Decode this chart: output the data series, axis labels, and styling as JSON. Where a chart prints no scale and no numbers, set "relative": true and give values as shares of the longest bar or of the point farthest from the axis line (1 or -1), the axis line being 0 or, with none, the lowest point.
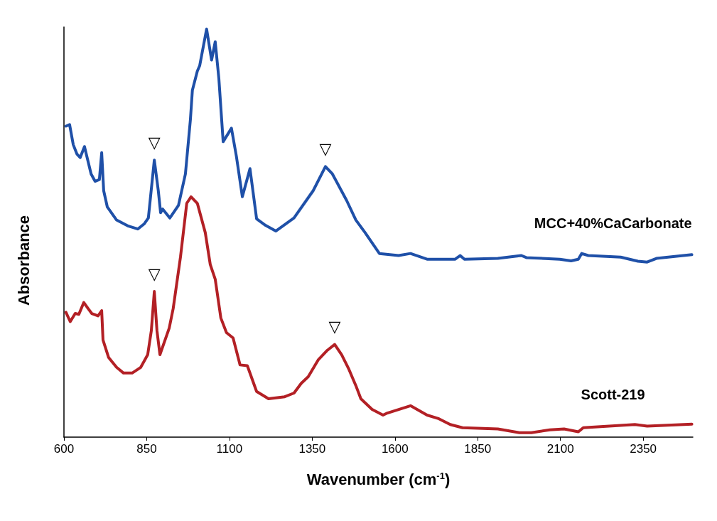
{
  "chart_data": {
    "type": "line",
    "relative": true,
    "xlabel": "Wavenumber (cm$^{-1}$)",
    "ylabel": "Absorbance",
    "xlim": [
      600,
      2500
    ],
    "xticks": [
      600,
      850,
      1100,
      1350,
      1600,
      1850,
      2100,
      2350
    ],
    "grid": false,
    "legend": false,
    "marker": "none",
    "line_style": "solid",
    "series": [
      {
        "name": "MCC+40%CaCarbonate",
        "color": "#1f50a8",
        "x": [
          606,
          617,
          628,
          639,
          649,
          662,
          682,
          694,
          707,
          714,
          720,
          731,
          759,
          795,
          823,
          843,
          855,
          873,
          885,
          892,
          898,
          920,
          946,
          967,
          982,
          988,
          1003,
          1010,
          1031,
          1046,
          1057,
          1068,
          1081,
          1106,
          1121,
          1139,
          1162,
          1182,
          1209,
          1240,
          1295,
          1353,
          1390,
          1411,
          1454,
          1482,
          1510,
          1525,
          1553,
          1611,
          1647,
          1697,
          1782,
          1797,
          1810,
          1911,
          1982,
          1997,
          2098,
          2132,
          2154,
          2164,
          2184,
          2282,
          2334,
          2362,
          2390,
          2497
        ],
        "values": [
          0.762,
          0.766,
          0.717,
          0.694,
          0.685,
          0.712,
          0.645,
          0.627,
          0.631,
          0.697,
          0.604,
          0.564,
          0.532,
          0.517,
          0.51,
          0.523,
          0.537,
          0.679,
          0.604,
          0.55,
          0.559,
          0.537,
          0.568,
          0.645,
          0.778,
          0.85,
          0.897,
          0.91,
          1,
          0.924,
          0.969,
          0.879,
          0.724,
          0.757,
          0.688,
          0.589,
          0.658,
          0.535,
          0.519,
          0.505,
          0.537,
          0.604,
          0.663,
          0.645,
          0.58,
          0.532,
          0.501,
          0.483,
          0.45,
          0.445,
          0.45,
          0.436,
          0.436,
          0.445,
          0.436,
          0.438,
          0.445,
          0.44,
          0.436,
          0.432,
          0.436,
          0.45,
          0.445,
          0.441,
          0.431,
          0.429,
          0.438,
          0.447
        ]
      },
      {
        "name": "Scott-219",
        "color": "#b32025",
        "x": [
          606,
          619,
          634,
          645,
          660,
          673,
          684,
          703,
          714,
          718,
          735,
          759,
          780,
          806,
          832,
          853,
          864,
          873,
          881,
          890,
          918,
          930,
          952,
          971,
          984,
          1003,
          1027,
          1042,
          1057,
          1074,
          1091,
          1111,
          1132,
          1154,
          1182,
          1218,
          1267,
          1295,
          1317,
          1338,
          1368,
          1396,
          1418,
          1439,
          1461,
          1482,
          1497,
          1531,
          1564,
          1574,
          1647,
          1697,
          1733,
          1767,
          1804,
          1911,
          1976,
          2012,
          2068,
          2111,
          2154,
          2169,
          2325,
          2362,
          2497
        ],
        "values": [
          0.306,
          0.283,
          0.303,
          0.301,
          0.33,
          0.315,
          0.303,
          0.297,
          0.31,
          0.238,
          0.195,
          0.171,
          0.157,
          0.157,
          0.171,
          0.202,
          0.261,
          0.357,
          0.261,
          0.202,
          0.267,
          0.315,
          0.441,
          0.573,
          0.589,
          0.573,
          0.501,
          0.423,
          0.387,
          0.292,
          0.256,
          0.243,
          0.177,
          0.175,
          0.112,
          0.094,
          0.099,
          0.108,
          0.132,
          0.148,
          0.189,
          0.213,
          0.227,
          0.202,
          0.166,
          0.126,
          0.094,
          0.068,
          0.054,
          0.058,
          0.077,
          0.054,
          0.045,
          0.031,
          0.023,
          0.02,
          0.011,
          0.011,
          0.018,
          0.02,
          0.013,
          0.023,
          0.031,
          0.027,
          0.032
        ]
      }
    ],
    "annotations": [
      {
        "text": "▽",
        "x": 873,
        "y": 0.679
      },
      {
        "text": "▽",
        "x": 1390,
        "y": 0.663
      },
      {
        "text": "▽",
        "x": 873,
        "y": 0.357
      },
      {
        "text": "▽",
        "x": 1418,
        "y": 0.227
      }
    ]
  }
}
